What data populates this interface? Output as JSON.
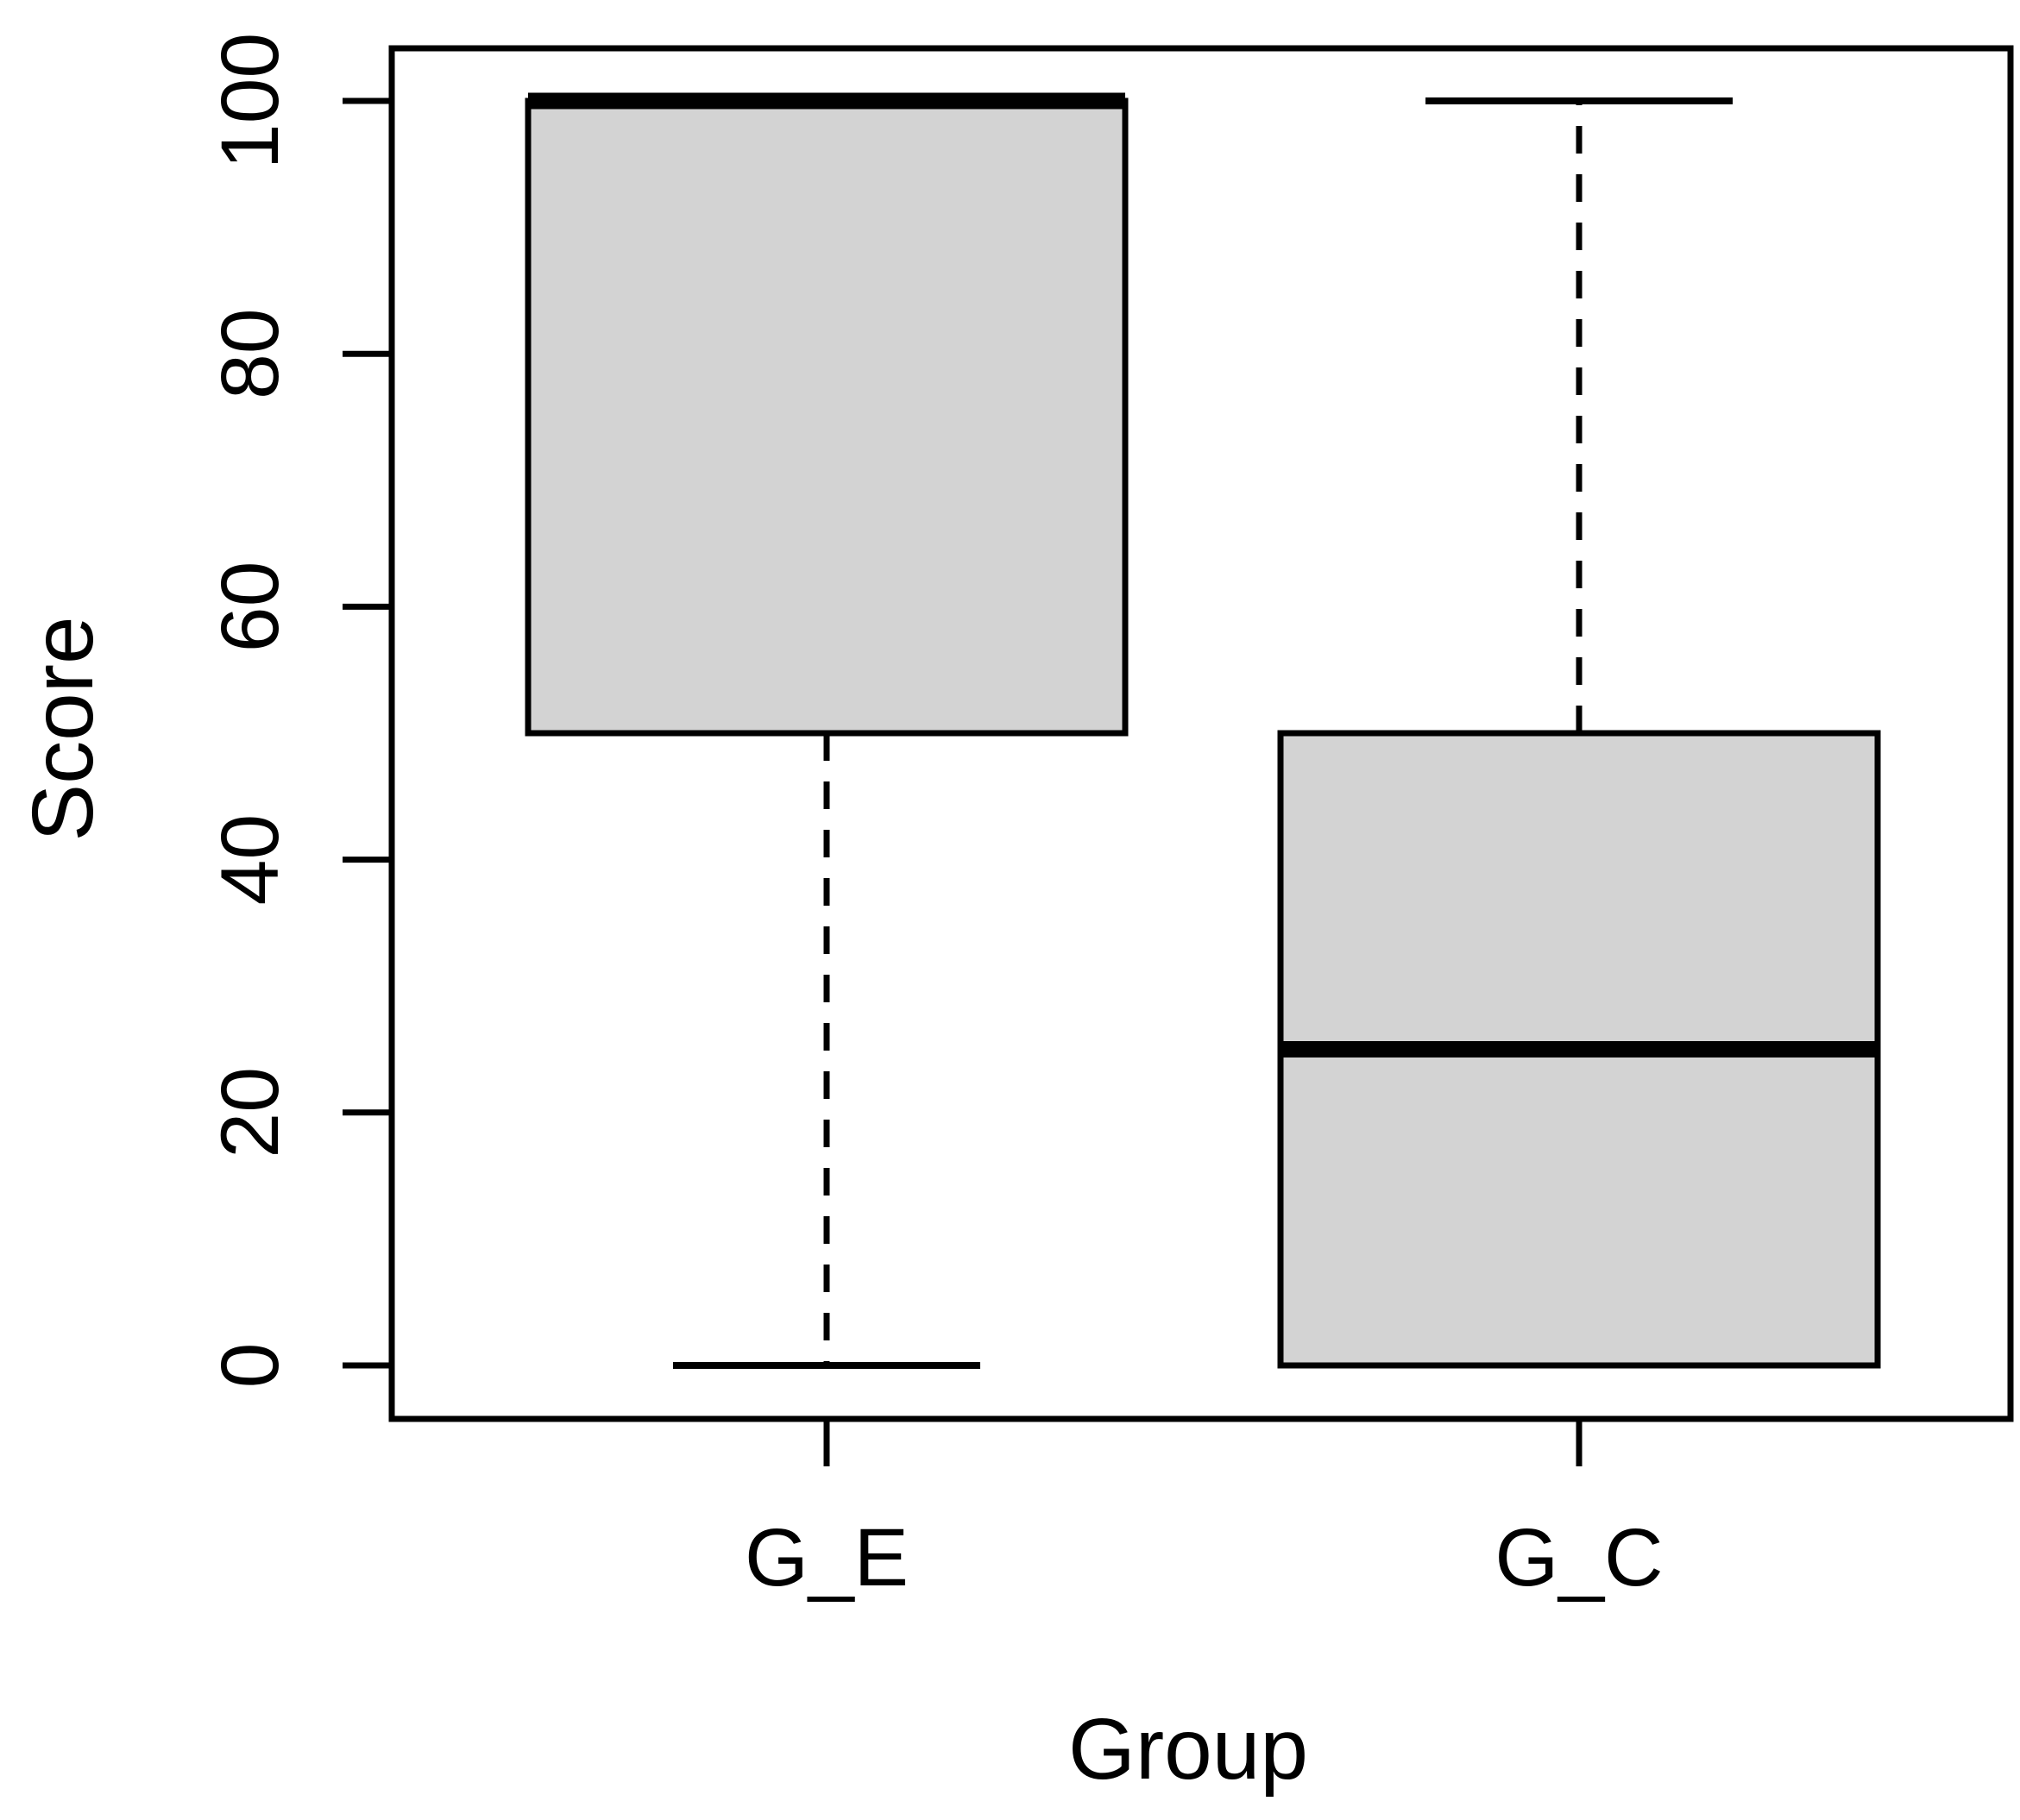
{
  "figure": {
    "background": "#ffffff"
  },
  "chart_data": {
    "type": "boxplot",
    "title": "",
    "xlabel": "Group",
    "ylabel": "Score",
    "categories": [
      "G_E",
      "G_C"
    ],
    "y_axis": {
      "min": 0,
      "max": 100,
      "ticks": [
        0,
        20,
        40,
        60,
        80,
        100
      ]
    },
    "boxes": [
      {
        "label": "G_E",
        "whisker_low": 0,
        "q1": 50,
        "median": 100,
        "q3": 100,
        "whisker_high": 100
      },
      {
        "label": "G_C",
        "whisker_low": 0,
        "q1": 0,
        "median": 25,
        "q3": 50,
        "whisker_high": 100
      }
    ],
    "style": {
      "box_fill": "#d3d3d3",
      "line_color": "#000000",
      "whisker_linestyle": "dashed"
    },
    "layout_hints": {
      "grid": false,
      "legend": false,
      "tick_label_orientation": "rotated-90"
    }
  }
}
